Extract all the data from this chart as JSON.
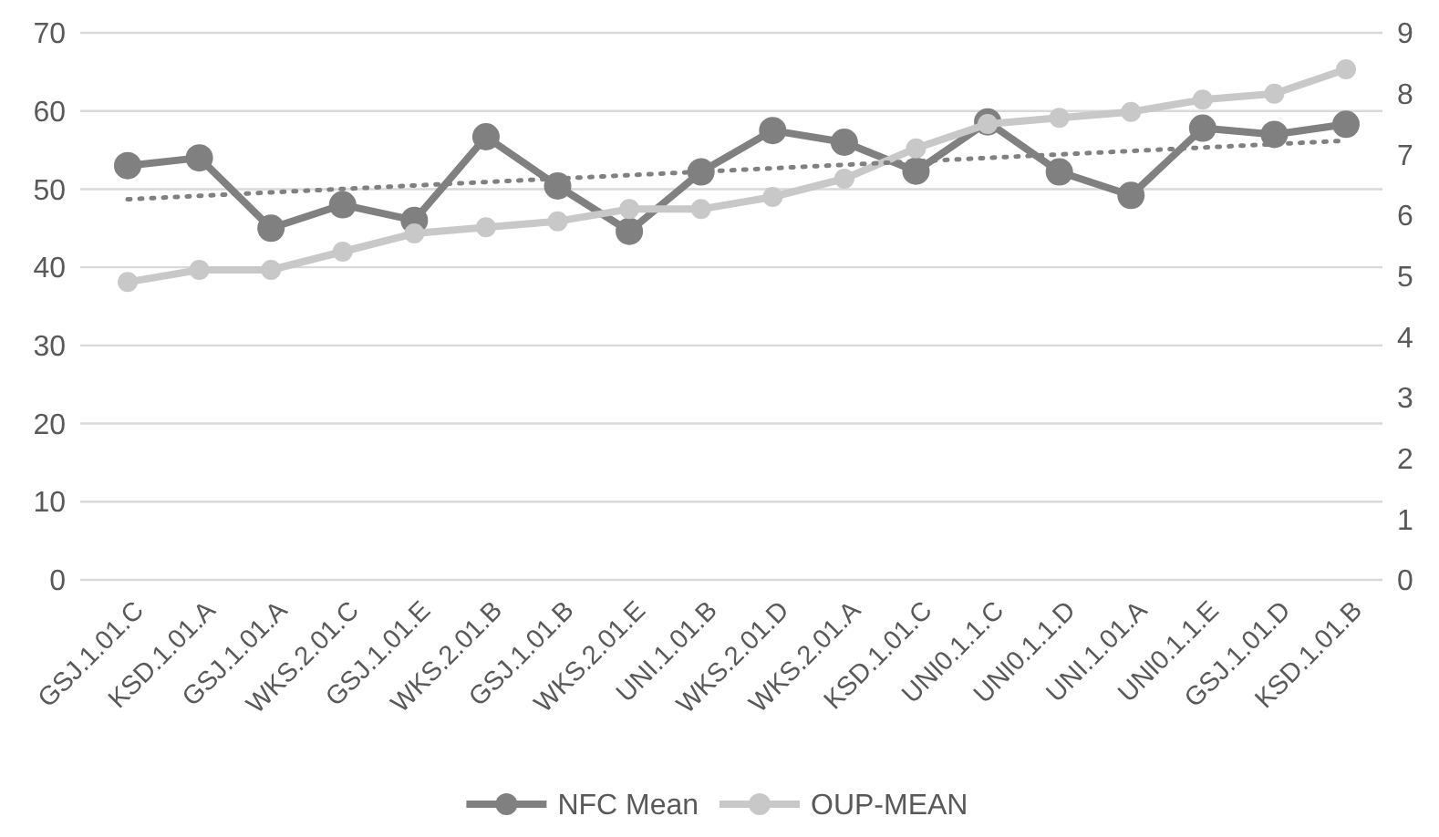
{
  "chart_data": {
    "type": "line",
    "categories": [
      "GSJ.1.01.C",
      "KSD.1.01.A",
      "GSJ.1.01.A",
      "WKS.2.01.C",
      "GSJ.1.01.E",
      "WKS.2.01.B",
      "GSJ.1.01.B",
      "WKS.2.01.E",
      "UNI.1.01.B",
      "WKS.2.01.D",
      "WKS.2.01.A",
      "KSD.1.01.C",
      "UNI0.1.1.C",
      "UNI0.1.1.D",
      "UNI.1.01.A",
      "UNI0.1.1.E",
      "GSJ.1.01.D",
      "KSD.1.01.B"
    ],
    "series": [
      {
        "name": "NFC Mean",
        "color": "#808080",
        "values": [
          53,
          54,
          45,
          48,
          46,
          56.7,
          50.4,
          44.6,
          52.2,
          57.5,
          56,
          52.3,
          58.6,
          52.2,
          49.2,
          57.8,
          57,
          58.3
        ]
      },
      {
        "name": "OUP-MEAN",
        "color": "#c8c8c8",
        "axis": "y2",
        "values": [
          4.9,
          5.1,
          5.1,
          5.4,
          5.7,
          5.8,
          5.9,
          6.1,
          6.1,
          6.3,
          6.6,
          7.1,
          7.5,
          7.6,
          7.7,
          7.9,
          8.0,
          8.4
        ]
      },
      {
        "type": "line",
        "color": "#808080",
        "x": [
          "GSJ.1.01.C",
          "KSD.1.01.B"
        ],
        "values": [
          48.7,
          56.2
        ],
        "marker": "none",
        "line_style": "dotted"
      }
    ],
    "ylim": [
      0,
      70
    ],
    "yticks": [
      0,
      10,
      20,
      30,
      40,
      50,
      60,
      70
    ],
    "y2lim": [
      0,
      9
    ],
    "y2ticks": [
      0,
      1,
      2,
      3,
      4,
      5,
      6,
      7,
      8,
      9
    ],
    "grid": "y",
    "legend": "bottom",
    "marker": "circle",
    "line_style": "solid"
  }
}
